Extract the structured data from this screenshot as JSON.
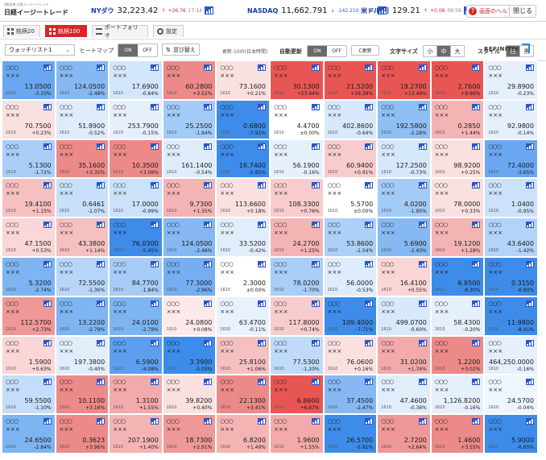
{
  "logo": {
    "sub": "SBI証券 日経イージートレード",
    "main": "日経イージートレード"
  },
  "tickers": [
    {
      "name": "NYダウ",
      "value": "32,223.42",
      "arrow": "↑",
      "change": "+26.76",
      "time": "17:14",
      "dir": "up"
    },
    {
      "name": "NASDAQ",
      "value": "11,662.791",
      "arrow": "↓",
      "change": "-142.210",
      "time": "17:15",
      "dir": "dn"
    },
    {
      "name": "米ドル/円",
      "value": "129.21",
      "arrow": "↑",
      "change": "+0.08",
      "time": "09:59",
      "dir": "up"
    }
  ],
  "header": {
    "help_label": "画面のヘルプ",
    "close_label": "閉じる"
  },
  "tabs": [
    {
      "label": "銘柄20",
      "active": false
    },
    {
      "label": "銘柄100",
      "active": true
    },
    {
      "label": "ポートフォリオ",
      "active": false
    },
    {
      "label": "設定",
      "active": false
    }
  ],
  "controls": {
    "updated_text": "更新:10の(日本時間)",
    "auto_update_label": "自動更新",
    "on_label": "ON",
    "off_label": "OFF",
    "refresh_label": "C更新",
    "font_size_label": "文字サイズ",
    "font_sizes": [
      "小",
      "中",
      "大"
    ],
    "style_label": "スタイル",
    "styles": [
      "白",
      "黒"
    ]
  },
  "toolbar": {
    "watchlist_value": "ウォッチリスト1",
    "heatmap_label": "ヒートマップ",
    "sort_label": "並び替え",
    "refinitiv": "REFINITIV"
  },
  "cells": [
    {
      "price": "13.0500",
      "change": "-3.33%",
      "color": "#6aa7f0"
    },
    {
      "price": "124.0500",
      "change": "-2.48%",
      "color": "#86b9f4"
    },
    {
      "price": "17.6900",
      "change": "-0.84%",
      "color": "#d3e6fb"
    },
    {
      "price": "60.2800",
      "change": "+3.52%",
      "color": "#ec8a89"
    },
    {
      "price": "73.1600",
      "change": "+0.21%",
      "color": "#fbe0e0"
    },
    {
      "price": "30.1300",
      "change": "+23.94%",
      "color": "#e85654"
    },
    {
      "price": "21.5200",
      "change": "+16.39%",
      "color": "#e85654"
    },
    {
      "price": "19.2700",
      "change": "+13.49%",
      "color": "#e85654"
    },
    {
      "price": "2.7600",
      "change": "+9.96%",
      "color": "#e85654"
    },
    {
      "price": "29.8900",
      "change": "-0.23%",
      "color": "#e6f0fd"
    },
    {
      "price": "70.7500",
      "change": "+0.23%",
      "color": "#fbe0e0"
    },
    {
      "price": "51.8900",
      "change": "-0.52%",
      "color": "#deecfc"
    },
    {
      "price": "253.7900",
      "change": "-0.15%",
      "color": "#e6f0fd"
    },
    {
      "price": "25.2500",
      "change": "-1.94%",
      "color": "#a3cbf7"
    },
    {
      "price": "0.6800",
      "change": "-7.91%",
      "color": "#3d8ce9"
    },
    {
      "price": "4.4700",
      "change": "±0.00%",
      "color": "#ffffff"
    },
    {
      "price": "402.8600",
      "change": "-0.64%",
      "color": "#d8e9fb"
    },
    {
      "price": "192.5800",
      "change": "-2.28%",
      "color": "#8ebff5"
    },
    {
      "price": "0.2850",
      "change": "+1.44%",
      "color": "#f5b4b4"
    },
    {
      "price": "92.9800",
      "change": "-0.14%",
      "color": "#e6f0fd"
    },
    {
      "price": "5.1300",
      "change": "-1.72%",
      "color": "#a9cef8"
    },
    {
      "price": "35.1600",
      "change": "+3.35%",
      "color": "#ec8a89"
    },
    {
      "price": "10.3500",
      "change": "+3.09%",
      "color": "#ec8a89"
    },
    {
      "price": "161.1400",
      "change": "-0.54%",
      "color": "#deecfc"
    },
    {
      "price": "16.7400",
      "change": "-5.85%",
      "color": "#3d8ce9"
    },
    {
      "price": "56.1900",
      "change": "-0.16%",
      "color": "#e6f0fd"
    },
    {
      "price": "60.9400",
      "change": "+0.91%",
      "color": "#f8cccc"
    },
    {
      "price": "127.2500",
      "change": "-0.73%",
      "color": "#d6e8fb"
    },
    {
      "price": "98.9200",
      "change": "+0.25%",
      "color": "#fbe0e0"
    },
    {
      "price": "72.4000",
      "change": "-3.65%",
      "color": "#6aa7f0"
    },
    {
      "price": "19.4100",
      "change": "+1.15%",
      "color": "#f6c0c0"
    },
    {
      "price": "0.6461",
      "change": "-1.07%",
      "color": "#c8e0fa"
    },
    {
      "price": "17.0000",
      "change": "-0.99%",
      "color": "#cbe2fa"
    },
    {
      "price": "9.7300",
      "change": "+1.35%",
      "color": "#f5b4b4"
    },
    {
      "price": "113.6600",
      "change": "+0.18%",
      "color": "#fbe0e0"
    },
    {
      "price": "108.3300",
      "change": "+0.76%",
      "color": "#f8cccc"
    },
    {
      "price": "5.5700",
      "change": "±0.00%",
      "color": "#ffffff"
    },
    {
      "price": "4.0200",
      "change": "-1.95%",
      "color": "#a3cbf7"
    },
    {
      "price": "78.0000",
      "change": "+0.33%",
      "color": "#fbe0e0"
    },
    {
      "price": "1.0400",
      "change": "-0.95%",
      "color": "#cbe2fa"
    },
    {
      "price": "47.1500",
      "change": "+0.53%",
      "color": "#fad6d6"
    },
    {
      "price": "43.3800",
      "change": "+1.14%",
      "color": "#f6c0c0"
    },
    {
      "price": "76.0300",
      "change": "-5.45%",
      "color": "#3d8ce9"
    },
    {
      "price": "124.0500",
      "change": "-2.48%",
      "color": "#86b9f4"
    },
    {
      "price": "33.5200",
      "change": "-0.42%",
      "color": "#e0eefc"
    },
    {
      "price": "24.2700",
      "change": "+1.25%",
      "color": "#f5b4b4"
    },
    {
      "price": "53.8600",
      "change": "-1.54%",
      "color": "#add0f8"
    },
    {
      "price": "5.6900",
      "change": "-2.40%",
      "color": "#86b9f4"
    },
    {
      "price": "19.1200",
      "change": "+1.28%",
      "color": "#f5b4b4"
    },
    {
      "price": "43.6400",
      "change": "-1.42%",
      "color": "#b3d3f8"
    },
    {
      "price": "5.3200",
      "change": "-2.74%",
      "color": "#7db4f2"
    },
    {
      "price": "72.5500",
      "change": "-1.36%",
      "color": "#b7d6f9"
    },
    {
      "price": "84.7700",
      "change": "-1.84%",
      "color": "#a6cdf7"
    },
    {
      "price": "77.3000",
      "change": "-2.96%",
      "color": "#75aff2"
    },
    {
      "price": "2.3000",
      "change": "±0.00%",
      "color": "#ffffff"
    },
    {
      "price": "78.0200",
      "change": "-1.70%",
      "color": "#a9cef8"
    },
    {
      "price": "56.0000",
      "change": "-0.53%",
      "color": "#deecfc"
    },
    {
      "price": "16.4100",
      "change": "+0.55%",
      "color": "#fad6d6"
    },
    {
      "price": "6.8500",
      "change": "-8.30%",
      "color": "#3d8ce9"
    },
    {
      "price": "0.3150",
      "change": "-8.80%",
      "color": "#3d8ce9"
    },
    {
      "price": "112.5700",
      "change": "+2.73%",
      "color": "#ee9897"
    },
    {
      "price": "13.2200",
      "change": "-2.79%",
      "color": "#7db4f2"
    },
    {
      "price": "24.0100",
      "change": "-2.79%",
      "color": "#7db4f2"
    },
    {
      "price": "24.0800",
      "change": "+0.08%",
      "color": "#fde9e9"
    },
    {
      "price": "63.4700",
      "change": "-0.11%",
      "color": "#e8f1fd"
    },
    {
      "price": "117.8000",
      "change": "+0.74%",
      "color": "#f8cccc"
    },
    {
      "price": "109.4000",
      "change": "-7.71%",
      "color": "#3d8ce9"
    },
    {
      "price": "499.0700",
      "change": "-0.60%",
      "color": "#d8e9fb"
    },
    {
      "price": "58.4300",
      "change": "-0.20%",
      "color": "#e6f0fd"
    },
    {
      "price": "11.9800",
      "change": "-8.41%",
      "color": "#3d8ce9"
    },
    {
      "price": "1.5900",
      "change": "+0.63%",
      "color": "#fad6d6"
    },
    {
      "price": "197.3800",
      "change": "-0.40%",
      "color": "#e0eefc"
    },
    {
      "price": "6.5900",
      "change": "-4.08%",
      "color": "#5d9fee"
    },
    {
      "price": "3.3900",
      "change": "-5.03%",
      "color": "#3d8ce9"
    },
    {
      "price": "25.8100",
      "change": "+1.06%",
      "color": "#f6c0c0"
    },
    {
      "price": "77.5300",
      "change": "-1.20%",
      "color": "#c0dbf9"
    },
    {
      "price": "76.0600",
      "change": "+0.16%",
      "color": "#fbe0e0"
    },
    {
      "price": "31.0200",
      "change": "+1.74%",
      "color": "#f3aaaa"
    },
    {
      "price": "1.2200",
      "change": "+3.02%",
      "color": "#ec8a89"
    },
    {
      "price": "464,250.0000",
      "change": "-0.16%",
      "color": "#e6f0fd"
    },
    {
      "price": "59.5500",
      "change": "-1.10%",
      "color": "#c4ddfa"
    },
    {
      "price": "10.1100",
      "change": "+3.16%",
      "color": "#ec8a89"
    },
    {
      "price": "1.3100",
      "change": "+1.55%",
      "color": "#f3aaaa"
    },
    {
      "price": "39.8200",
      "change": "+0.40%",
      "color": "#fbe0e0"
    },
    {
      "price": "22.1300",
      "change": "+3.41%",
      "color": "#ec8a89"
    },
    {
      "price": "6.8600",
      "change": "+6.87%",
      "color": "#e85654"
    },
    {
      "price": "37.4500",
      "change": "-2.47%",
      "color": "#86b9f4"
    },
    {
      "price": "47.4600",
      "change": "-0.38%",
      "color": "#e0eefc"
    },
    {
      "price": "1,126.8200",
      "change": "-0.16%",
      "color": "#e6f0fd"
    },
    {
      "price": "24.5700",
      "change": "-0.04%",
      "color": "#eef5fe"
    },
    {
      "price": "24.6500",
      "change": "-2.84%",
      "color": "#7db4f2"
    },
    {
      "price": "0.3623",
      "change": "+3.96%",
      "color": "#ec8a89"
    },
    {
      "price": "207.1900",
      "change": "+1.40%",
      "color": "#f5b4b4"
    },
    {
      "price": "18.7300",
      "change": "+2.91%",
      "color": "#ee9897"
    },
    {
      "price": "6.8200",
      "change": "+1.49%",
      "color": "#f5b4b4"
    },
    {
      "price": "1.9600",
      "change": "+1.55%",
      "color": "#f3aaaa"
    },
    {
      "price": "26.5700",
      "change": "-5.81%",
      "color": "#3d8ce9"
    },
    {
      "price": "2.7200",
      "change": "+2.64%",
      "color": "#ee9897"
    },
    {
      "price": "1.4600",
      "change": "+3.55%",
      "color": "#ec8a89"
    },
    {
      "price": "5.9000",
      "change": "-6.65%",
      "color": "#3d8ce9"
    }
  ],
  "cell_name": "○○○",
  "cell_sub": "×××",
  "cell_code": "1610"
}
